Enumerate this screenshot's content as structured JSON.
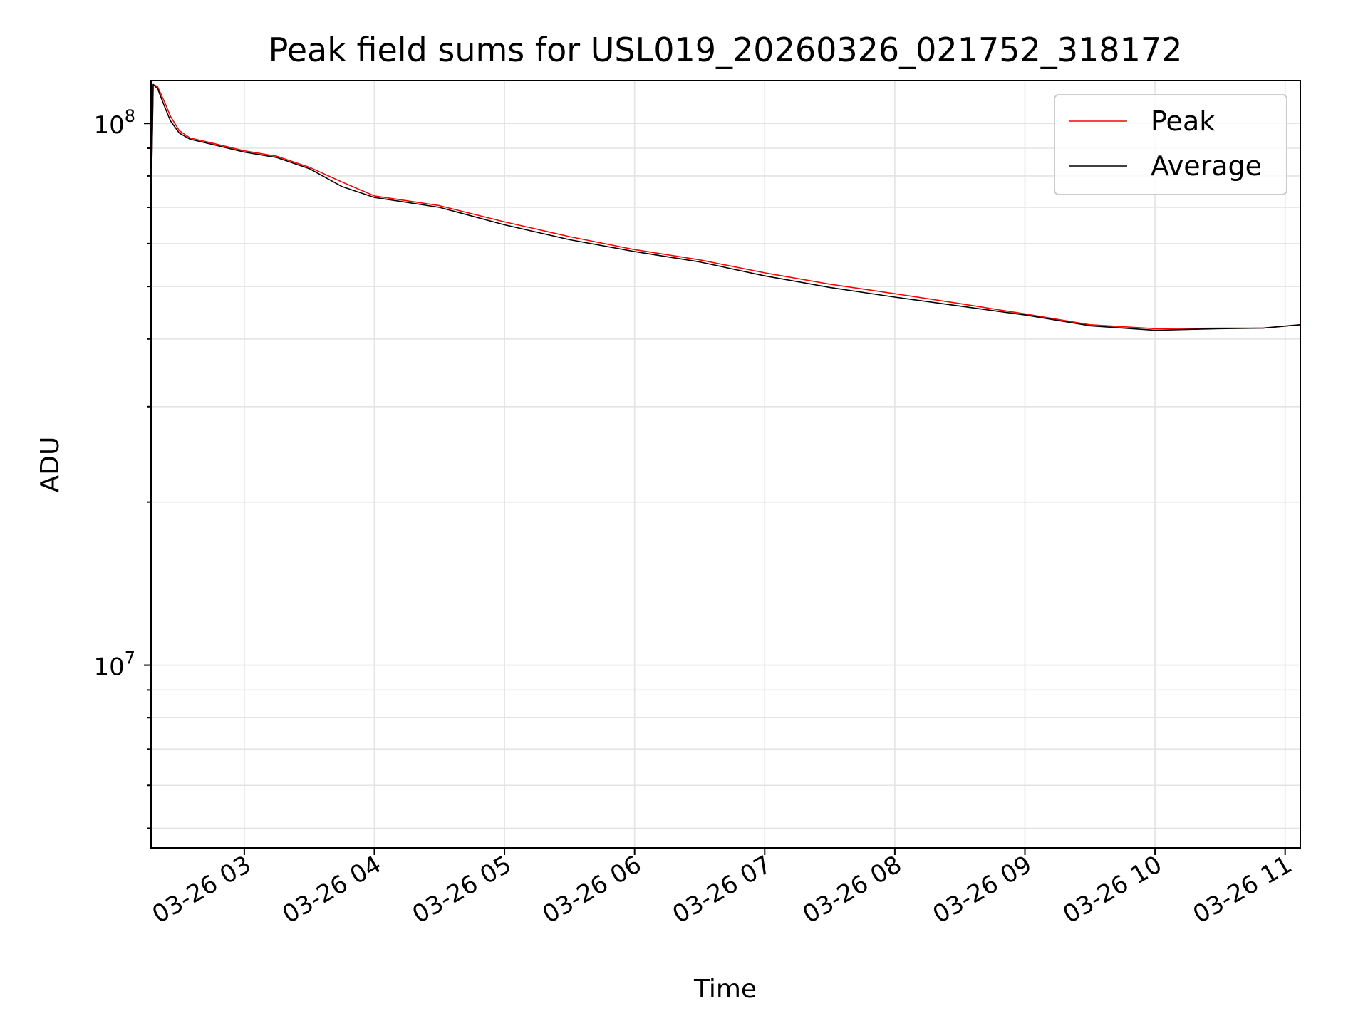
{
  "chart_data": {
    "type": "line",
    "title": "Peak field sums for USL019_20260326_021752_318172",
    "xlabel": "Time",
    "ylabel": "ADU",
    "y_scale": "log",
    "ylim": [
      4600000,
      120000000
    ],
    "xlim": [
      "03-26 02:17",
      "03-26 11:07"
    ],
    "grid": true,
    "legend_position": "top-right",
    "x_ticks": [
      "03-26 03",
      "03-26 04",
      "03-26 05",
      "03-26 06",
      "03-26 07",
      "03-26 08",
      "03-26 09",
      "03-26 10",
      "03-26 11"
    ],
    "y_ticks": [
      {
        "value": 10000000,
        "base": "10",
        "exp": "7"
      },
      {
        "value": 100000000,
        "base": "10",
        "exp": "8"
      }
    ],
    "series": [
      {
        "name": "Peak",
        "color": "#ff0000",
        "points": [
          [
            "03-26 02:17",
            70000000
          ],
          [
            "03-26 02:18",
            118000000
          ],
          [
            "03-26 02:20",
            117000000
          ],
          [
            "03-26 02:23",
            110000000
          ],
          [
            "03-26 02:26",
            103000000
          ],
          [
            "03-26 02:30",
            97000000
          ],
          [
            "03-26 02:35",
            94000000
          ],
          [
            "03-26 02:45",
            92000000
          ],
          [
            "03-26 03:00",
            89000000
          ],
          [
            "03-26 03:15",
            87000000
          ],
          [
            "03-26 03:30",
            83000000
          ],
          [
            "03-26 03:45",
            78000000
          ],
          [
            "03-26 04:00",
            73500000
          ],
          [
            "03-26 04:30",
            70500000
          ],
          [
            "03-26 05:00",
            65800000
          ],
          [
            "03-26 05:30",
            61800000
          ],
          [
            "03-26 06:00",
            58500000
          ],
          [
            "03-26 06:30",
            56000000
          ],
          [
            "03-26 07:00",
            53000000
          ],
          [
            "03-26 07:30",
            50500000
          ],
          [
            "03-26 08:00",
            48500000
          ],
          [
            "03-26 08:30",
            46500000
          ],
          [
            "03-26 09:00",
            44500000
          ],
          [
            "03-26 09:30",
            42500000
          ],
          [
            "03-26 10:00",
            41800000
          ],
          [
            "03-26 10:30",
            41900000
          ],
          [
            "03-26 10:50",
            41900000
          ],
          [
            "03-26 11:07",
            42500000
          ]
        ]
      },
      {
        "name": "Average",
        "color": "#000000",
        "points": [
          [
            "03-26 02:17",
            70000000
          ],
          [
            "03-26 02:18",
            118000000
          ],
          [
            "03-26 02:20",
            116000000
          ],
          [
            "03-26 02:23",
            108000000
          ],
          [
            "03-26 02:26",
            101000000
          ],
          [
            "03-26 02:30",
            96000000
          ],
          [
            "03-26 02:35",
            93500000
          ],
          [
            "03-26 02:45",
            91500000
          ],
          [
            "03-26 03:00",
            88500000
          ],
          [
            "03-26 03:15",
            86500000
          ],
          [
            "03-26 03:30",
            82500000
          ],
          [
            "03-26 03:45",
            76500000
          ],
          [
            "03-26 04:00",
            73000000
          ],
          [
            "03-26 04:30",
            70000000
          ],
          [
            "03-26 05:00",
            65000000
          ],
          [
            "03-26 05:30",
            61000000
          ],
          [
            "03-26 06:00",
            58000000
          ],
          [
            "03-26 06:30",
            55500000
          ],
          [
            "03-26 07:00",
            52300000
          ],
          [
            "03-26 07:30",
            49800000
          ],
          [
            "03-26 08:00",
            47800000
          ],
          [
            "03-26 08:30",
            46000000
          ],
          [
            "03-26 09:00",
            44300000
          ],
          [
            "03-26 09:30",
            42300000
          ],
          [
            "03-26 10:00",
            41500000
          ],
          [
            "03-26 10:30",
            41800000
          ],
          [
            "03-26 10:50",
            41900000
          ],
          [
            "03-26 11:07",
            42500000
          ]
        ]
      }
    ]
  }
}
